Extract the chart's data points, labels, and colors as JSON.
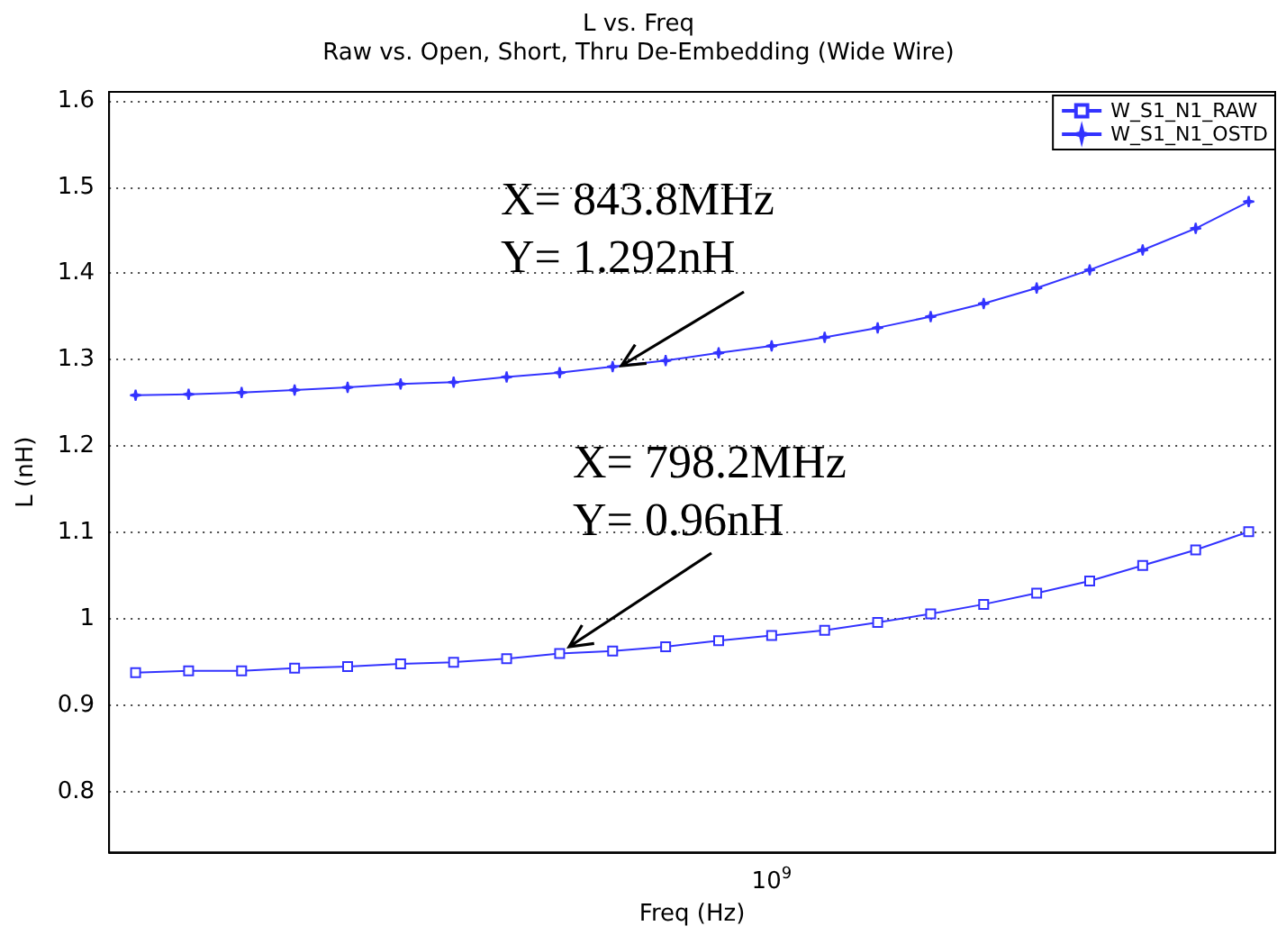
{
  "chart_data": {
    "type": "line",
    "title": "L vs. Freq",
    "subtitle": "Raw vs. Open, Short, Thru De-Embedding (Wide Wire)",
    "xlabel": "Freq (Hz)",
    "ylabel": "L (nH)",
    "categories": [
      null,
      null,
      null,
      null,
      null,
      null,
      null,
      null,
      null,
      null,
      null,
      null,
      "10$^{9}$",
      null,
      null,
      null,
      null,
      null,
      null,
      null,
      null,
      null
    ],
    "series": [
      {
        "name": "W_S1_N1_RAW",
        "color": "#3333ff",
        "marker": "square",
        "values": [
          0.938,
          0.94,
          0.94,
          0.943,
          0.945,
          0.948,
          0.95,
          0.954,
          0.96,
          0.963,
          0.968,
          0.975,
          0.981,
          0.987,
          0.996,
          1.006,
          1.017,
          1.03,
          1.044,
          1.062,
          1.08,
          1.101
        ]
      },
      {
        "name": "W_S1_N1_OSTD",
        "color": "#3333ff",
        "marker": "star",
        "values": [
          1.259,
          1.26,
          1.262,
          1.265,
          1.268,
          1.272,
          1.274,
          1.28,
          1.285,
          1.292,
          1.299,
          1.308,
          1.316,
          1.326,
          1.337,
          1.35,
          1.365,
          1.383,
          1.404,
          1.427,
          1.452,
          1.483
        ]
      }
    ],
    "ylim": [
      0.73,
      1.61
    ],
    "yticks": [
      0.8,
      0.9,
      1,
      1.1,
      1.2,
      1.3,
      1.4,
      1.5,
      1.6
    ],
    "grid": "y",
    "legend": "top right",
    "line_style": "solid",
    "annotations": [
      "X= 843.8MHz\nY= 1.292nH",
      "X= 798.2MHz\nY= 0.96nH"
    ]
  }
}
